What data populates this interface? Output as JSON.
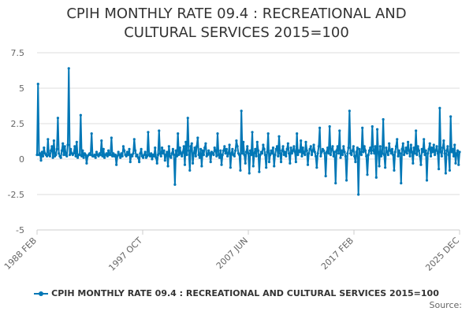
{
  "chart_data": {
    "type": "line",
    "title_lines": [
      "CPIH MONTHLY RATE 09.4 : RECREATIONAL AND",
      "CULTURAL SERVICES 2015=100"
    ],
    "series": [
      {
        "name": "CPIH MONTHLY RATE 09.4 : RECREATIONAL AND CULTURAL SERVICES 2015=100",
        "color": "#0077b6",
        "values": [
          0.3,
          5.3,
          0.3,
          0.4,
          -0.1,
          0.5,
          0.2,
          0.8,
          0.4,
          0.3,
          0.2,
          1.4,
          0.3,
          0.2,
          0.6,
          0.9,
          0.1,
          1.3,
          0.2,
          0.3,
          0.7,
          2.9,
          0.4,
          0.2,
          0.1,
          0.6,
          1.1,
          0.3,
          0.9,
          0.3,
          0.2,
          1.0,
          6.4,
          0.3,
          0.7,
          0.4,
          0.3,
          0.4,
          0.9,
          0.2,
          1.2,
          0.1,
          0.3,
          0.3,
          3.1,
          0.2,
          0.6,
          0.1,
          0.4,
          0.3,
          -0.3,
          0.2,
          0.3,
          0.4,
          0.3,
          1.8,
          0.2,
          0.2,
          0.3,
          0.1,
          0.5,
          0.3,
          0.2,
          0.4,
          0.3,
          1.3,
          0.2,
          0.7,
          0.1,
          0.3,
          0.4,
          0.2,
          0.6,
          0.3,
          0.3,
          1.5,
          0.2,
          0.4,
          0.2,
          0.3,
          -0.4,
          0.2,
          0.5,
          0.3,
          0.1,
          0.4,
          0.2,
          0.9,
          0.6,
          0.3,
          0.2,
          0.5,
          0.3,
          0.7,
          -0.2,
          0.3,
          0.2,
          0.4,
          1.4,
          0.6,
          0.2,
          0.3,
          0.1,
          -0.2,
          0.4,
          0.7,
          0.2,
          0.1,
          0.3,
          0.5,
          0.1,
          0.2,
          1.9,
          0.3,
          0.2,
          0.4,
          0.0,
          0.3,
          0.2,
          0.8,
          0.1,
          -0.3,
          0.3,
          2.0,
          0.4,
          0.2,
          0.8,
          0.4,
          0.6,
          -0.1,
          0.3,
          0.5,
          -0.5,
          0.9,
          0.2,
          0.1,
          0.4,
          0.7,
          0.3,
          -1.8,
          0.6,
          0.2,
          1.8,
          0.3,
          0.8,
          0.4,
          0.2,
          0.5,
          0.9,
          -0.4,
          1.2,
          0.3,
          2.9,
          0.6,
          -0.8,
          0.9,
          1.1,
          -0.3,
          0.4,
          0.8,
          0.2,
          0.9,
          1.5,
          0.3,
          0.1,
          0.7,
          -0.5,
          0.6,
          0.3,
          0.8,
          1.1,
          0.2,
          0.3,
          0.6,
          0.4,
          -0.2,
          0.5,
          0.4,
          0.3,
          0.8,
          0.6,
          0.2,
          1.8,
          0.3,
          0.1,
          0.6,
          -0.4,
          0.3,
          0.6,
          0.9,
          0.4,
          0.7,
          0.2,
          0.4,
          1.0,
          -0.6,
          0.4,
          0.7,
          0.3,
          0.2,
          0.6,
          1.3,
          0.9,
          0.4,
          0.3,
          -0.8,
          3.4,
          0.4,
          1.2,
          0.3,
          -0.3,
          0.5,
          0.9,
          0.4,
          -1.0,
          0.6,
          0.3,
          1.9,
          -0.5,
          0.4,
          0.7,
          0.2,
          1.2,
          0.6,
          -0.9,
          0.3,
          0.5,
          0.4,
          1.0,
          0.7,
          0.3,
          -0.6,
          0.5,
          1.8,
          -0.2,
          0.3,
          0.6,
          0.4,
          0.8,
          -0.5,
          0.3,
          0.7,
          0.9,
          0.2,
          1.6,
          0.4,
          -0.2,
          0.6,
          0.9,
          0.3,
          0.5,
          0.2,
          0.7,
          1.1,
          0.4,
          -0.3,
          0.8,
          0.4,
          0.6,
          0.9,
          0.5,
          -0.2,
          1.8,
          0.3,
          0.6,
          0.5,
          1.3,
          0.2,
          0.8,
          0.4,
          0.3,
          1.2,
          0.6,
          -0.4,
          0.4,
          0.7,
          0.9,
          0.3,
          0.6,
          1.0,
          0.5,
          0.2,
          -0.6,
          0.4,
          0.9,
          2.2,
          0.2,
          0.5,
          0.7,
          0.6,
          0.4,
          -1.2,
          0.5,
          0.8,
          0.4,
          2.3,
          0.3,
          0.7,
          0.9,
          0.2,
          0.5,
          -1.7,
          0.6,
          0.9,
          0.4,
          2.0,
          0.1,
          0.6,
          0.3,
          0.9,
          0.5,
          0.2,
          -1.5,
          0.4,
          0.8,
          3.4,
          0.4,
          0.3,
          0.6,
          0.9,
          0.2,
          -0.2,
          0.5,
          0.8,
          -2.5,
          0.7,
          0.4,
          0.3,
          2.2,
          0.5,
          0.9,
          0.6,
          0.2,
          -1.1,
          0.3,
          0.6,
          0.8,
          0.4,
          2.3,
          0.6,
          0.4,
          0.9,
          -1.3,
          2.1,
          0.5,
          -0.5,
          0.9,
          0.2,
          0.4,
          2.8,
          0.3,
          -0.6,
          0.8,
          0.5,
          0.3,
          1.1,
          0.6,
          0.4,
          0.7,
          0.3,
          -0.8,
          0.5,
          0.9,
          1.4,
          0.2,
          0.6,
          0.4,
          -1.7,
          0.7,
          1.1,
          0.3,
          0.5,
          0.8,
          0.4,
          1.2,
          0.6,
          0.2,
          1.0,
          0.5,
          -0.3,
          0.8,
          0.4,
          2.0,
          0.3,
          0.9,
          0.6,
          0.2,
          -0.4,
          0.7,
          0.5,
          1.4,
          0.3,
          0.6,
          -1.5,
          0.4,
          0.7,
          1.1,
          0.2,
          0.8,
          0.5,
          1.0,
          0.3,
          0.6,
          0.9,
          0.4,
          -0.7,
          3.6,
          0.5,
          0.2,
          0.8,
          1.3,
          0.4,
          -1.0,
          0.6,
          0.9,
          0.3,
          -0.8,
          3.0,
          0.5,
          0.7,
          0.2,
          1.0,
          -0.3,
          0.4,
          0.6,
          -0.4,
          0.5
        ]
      }
    ],
    "x_start": "1988 FEB",
    "x_end": "2025 DEC",
    "x_tick_labels": [
      "1988 FEB",
      "1997 OCT",
      "2007 JUN",
      "2017 FEB",
      "2025 DEC"
    ],
    "y_ticks": [
      7.5,
      5,
      2.5,
      0,
      -2.5,
      -5
    ],
    "y_tick_labels": [
      "7.5",
      "5",
      "2.5",
      "0",
      "-2.5",
      "-5"
    ],
    "ylim": [
      -5,
      7.5
    ],
    "grid": "horizontal",
    "legend_position": "bottom",
    "xlabel": "",
    "ylabel": ""
  },
  "source_label": "Source:"
}
